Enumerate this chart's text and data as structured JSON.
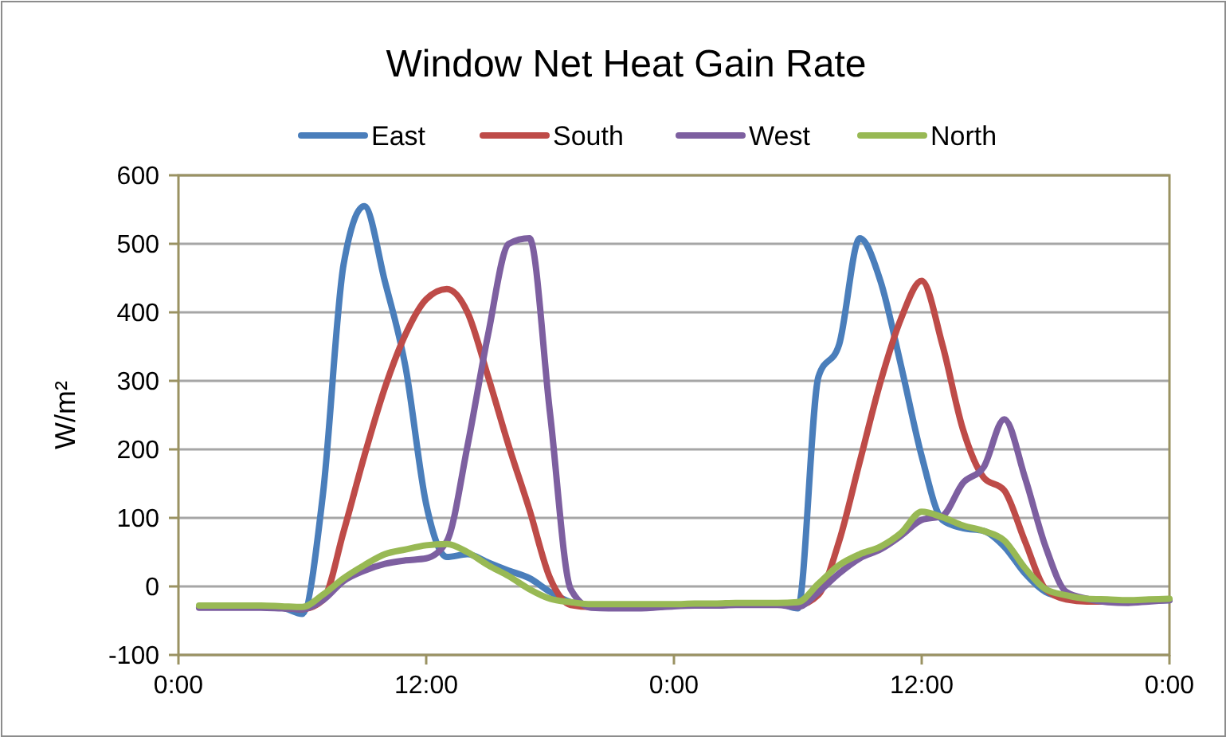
{
  "chart_data": {
    "type": "line",
    "title": "Window Net Heat Gain Rate",
    "ylabel": "W/m²",
    "x": [
      "2000-01-01T01:00",
      "2000-01-01T02:00",
      "2000-01-01T03:00",
      "2000-01-01T04:00",
      "2000-01-01T05:00",
      "2000-01-01T06:00",
      "2000-01-01T07:00",
      "2000-01-01T08:00",
      "2000-01-01T09:00",
      "2000-01-01T10:00",
      "2000-01-01T11:00",
      "2000-01-01T12:00",
      "2000-01-01T13:00",
      "2000-01-01T14:00",
      "2000-01-01T15:00",
      "2000-01-01T16:00",
      "2000-01-01T17:00",
      "2000-01-01T18:00",
      "2000-01-01T19:00",
      "2000-01-01T20:00",
      "2000-01-01T21:00",
      "2000-01-01T22:00",
      "2000-01-01T23:00",
      "2000-01-02T00:00",
      "2000-01-02T01:00",
      "2000-01-02T02:00",
      "2000-01-02T03:00",
      "2000-01-02T04:00",
      "2000-01-02T05:00",
      "2000-01-02T06:00",
      "2000-01-02T07:00",
      "2000-01-02T08:00",
      "2000-01-02T09:00",
      "2000-01-02T10:00",
      "2000-01-02T11:00",
      "2000-01-02T12:00",
      "2000-01-02T13:00",
      "2000-01-02T14:00",
      "2000-01-02T15:00",
      "2000-01-02T16:00",
      "2000-01-02T17:00",
      "2000-01-02T18:00",
      "2000-01-02T19:00",
      "2000-01-02T20:00",
      "2000-01-02T21:00",
      "2000-01-02T22:00",
      "2000-01-02T23:00",
      "2000-01-03T00:00"
    ],
    "series": [
      {
        "name": "East",
        "color": "#4a7ebb",
        "values": [
          -30,
          -30,
          -30,
          -30,
          -31,
          -40,
          135,
          470,
          555,
          445,
          320,
          120,
          43,
          47,
          35,
          23,
          12,
          -8,
          -23,
          -30,
          -30,
          -30,
          -30,
          -28,
          -27,
          -26,
          -26,
          -25,
          -25,
          -32,
          306,
          353,
          508,
          446,
          322,
          190,
          97,
          85,
          81,
          58,
          19,
          -8,
          -16,
          -19,
          -21,
          -22,
          -21,
          -20
        ]
      },
      {
        "name": "South",
        "color": "#be4b48",
        "values": [
          null,
          null,
          null,
          null,
          -31,
          -33,
          -20,
          80,
          190,
          290,
          368,
          419,
          434,
          400,
          306,
          205,
          112,
          12,
          -27,
          -30,
          -30,
          -30,
          -30,
          -28,
          -27,
          -27,
          -26,
          -26,
          -26,
          -27,
          -12,
          66,
          182,
          298,
          391,
          446,
          353,
          229,
          159,
          140,
          66,
          -4,
          -19,
          -22,
          -22,
          -22,
          null,
          null
        ]
      },
      {
        "name": "West",
        "color": "#7d5fa0",
        "values": [
          -31,
          -31,
          -31,
          -31,
          -32,
          -33,
          -20,
          8,
          23,
          33,
          38,
          41,
          66,
          205,
          368,
          500,
          508,
          252,
          -4,
          -31,
          -32,
          -32,
          -31,
          -29,
          -28,
          -28,
          -27,
          -27,
          -27,
          -30,
          -8,
          19,
          41,
          54,
          74,
          97,
          103,
          151,
          174,
          244,
          159,
          58,
          -8,
          -18,
          -23,
          -24,
          -22,
          -20
        ]
      },
      {
        "name": "North",
        "color": "#98b954",
        "values": [
          -28,
          -28,
          -28,
          -28,
          -29,
          -30,
          -12,
          12,
          31,
          47,
          54,
          60,
          62,
          50,
          31,
          15,
          -4,
          -18,
          -23,
          -26,
          -26,
          -26,
          -26,
          -26,
          -25,
          -25,
          -24,
          -24,
          -24,
          -23,
          4,
          31,
          47,
          58,
          78,
          109,
          101,
          89,
          81,
          67,
          27,
          -4,
          -13,
          -18,
          -19,
          -20,
          -19,
          -18
        ]
      }
    ],
    "xlim": [
      "2000-01-01T00:00",
      "2000-01-03T00:00"
    ],
    "xticks": [
      {
        "value": "2000-01-01T00:00",
        "label": "0:00"
      },
      {
        "value": "2000-01-01T12:00",
        "label": "12:00"
      },
      {
        "value": "2000-01-02T00:00",
        "label": "0:00"
      },
      {
        "value": "2000-01-02T12:00",
        "label": "12:00"
      },
      {
        "value": "2000-01-03T00:00",
        "label": "0:00"
      }
    ],
    "ylim": [
      -100,
      600
    ],
    "yticks": [
      -100,
      0,
      100,
      200,
      300,
      400,
      500,
      600
    ],
    "grid": "y",
    "legend": "top",
    "marker": "none",
    "line_style": "solid"
  }
}
